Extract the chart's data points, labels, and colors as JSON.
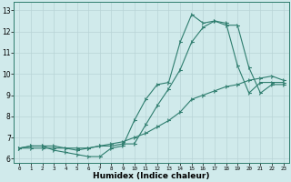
{
  "line1_x": [
    0,
    1,
    2,
    3,
    4,
    5,
    6,
    7,
    8,
    9,
    10,
    11,
    12,
    13,
    14,
    15,
    16,
    17,
    18,
    19,
    20,
    21,
    22,
    23
  ],
  "line1_y": [
    6.5,
    6.6,
    6.6,
    6.4,
    6.3,
    6.2,
    6.1,
    6.1,
    6.5,
    6.6,
    7.8,
    8.8,
    9.5,
    9.6,
    11.5,
    12.8,
    12.4,
    12.5,
    12.4,
    10.4,
    9.1,
    9.6,
    9.6,
    9.6
  ],
  "line2_x": [
    0,
    1,
    2,
    3,
    4,
    5,
    6,
    7,
    8,
    9,
    10,
    11,
    12,
    13,
    14,
    15,
    16,
    17,
    18,
    19,
    20,
    21,
    22,
    23
  ],
  "line2_y": [
    6.5,
    6.6,
    6.6,
    6.6,
    6.5,
    6.4,
    6.5,
    6.6,
    6.6,
    6.7,
    6.7,
    7.6,
    8.5,
    9.3,
    10.2,
    11.5,
    12.2,
    12.5,
    12.3,
    12.3,
    10.3,
    9.1,
    9.5,
    9.5
  ],
  "line3_x": [
    0,
    1,
    2,
    3,
    4,
    5,
    6,
    7,
    8,
    9,
    10,
    11,
    12,
    13,
    14,
    15,
    16,
    17,
    18,
    19,
    20,
    21,
    22,
    23
  ],
  "line3_y": [
    6.5,
    6.5,
    6.5,
    6.5,
    6.5,
    6.5,
    6.5,
    6.6,
    6.7,
    6.8,
    7.0,
    7.2,
    7.5,
    7.8,
    8.2,
    8.8,
    9.0,
    9.2,
    9.4,
    9.5,
    9.7,
    9.8,
    9.9,
    9.7
  ],
  "line_color": "#2e7d6e",
  "bg_color": "#d0eaeb",
  "grid_color": "#b8d4d6",
  "xlabel": "Humidex (Indice chaleur)",
  "ylim": [
    5.8,
    13.4
  ],
  "xlim": [
    -0.5,
    23.5
  ],
  "yticks": [
    6,
    7,
    8,
    9,
    10,
    11,
    12,
    13
  ],
  "xticks": [
    0,
    1,
    2,
    3,
    4,
    5,
    6,
    7,
    8,
    9,
    10,
    11,
    12,
    13,
    14,
    15,
    16,
    17,
    18,
    19,
    20,
    21,
    22,
    23
  ]
}
